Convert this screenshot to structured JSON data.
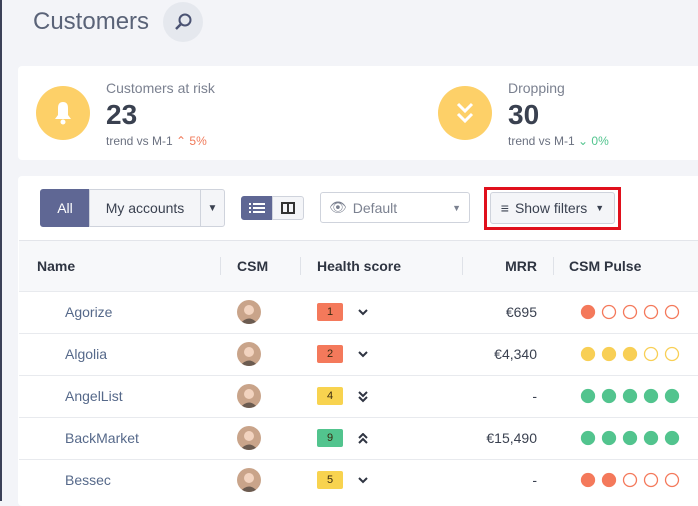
{
  "header": {
    "title": "Customers"
  },
  "kpis": [
    {
      "label": "Customers at risk",
      "value": "23",
      "trend_label": "trend vs M-1",
      "trend": "5%"
    },
    {
      "label": "Dropping",
      "value": "30",
      "trend_label": "trend vs M-1",
      "trend": "0%"
    }
  ],
  "toolbar": {
    "all": "All",
    "my_accounts": "My accounts",
    "view": "Default",
    "filters": "Show filters"
  },
  "table": {
    "columns": [
      "Name",
      "CSM",
      "Health score",
      "MRR",
      "CSM Pulse"
    ],
    "rows": [
      {
        "name": "Agorize",
        "health": "1",
        "health_color": "#f4795b",
        "trend": "down",
        "mrr": "€695",
        "pulse": 1,
        "pulse_color": "#f4795b"
      },
      {
        "name": "Algolia",
        "health": "2",
        "health_color": "#f4795b",
        "trend": "down",
        "mrr": "€4,340",
        "pulse": 3,
        "pulse_color": "#f8cf55"
      },
      {
        "name": "AngelList",
        "health": "4",
        "health_color": "#f8d34f",
        "trend": "double-down",
        "mrr": "-",
        "pulse": 5,
        "pulse_color": "#52c48e"
      },
      {
        "name": "BackMarket",
        "health": "9",
        "health_color": "#52c48e",
        "trend": "double-up",
        "mrr": "€15,490",
        "pulse": 5,
        "pulse_color": "#52c48e"
      },
      {
        "name": "Bessec",
        "health": "5",
        "health_color": "#f8d34f",
        "trend": "down",
        "mrr": "-",
        "pulse": 2,
        "pulse_color": "#f4795b"
      }
    ]
  }
}
